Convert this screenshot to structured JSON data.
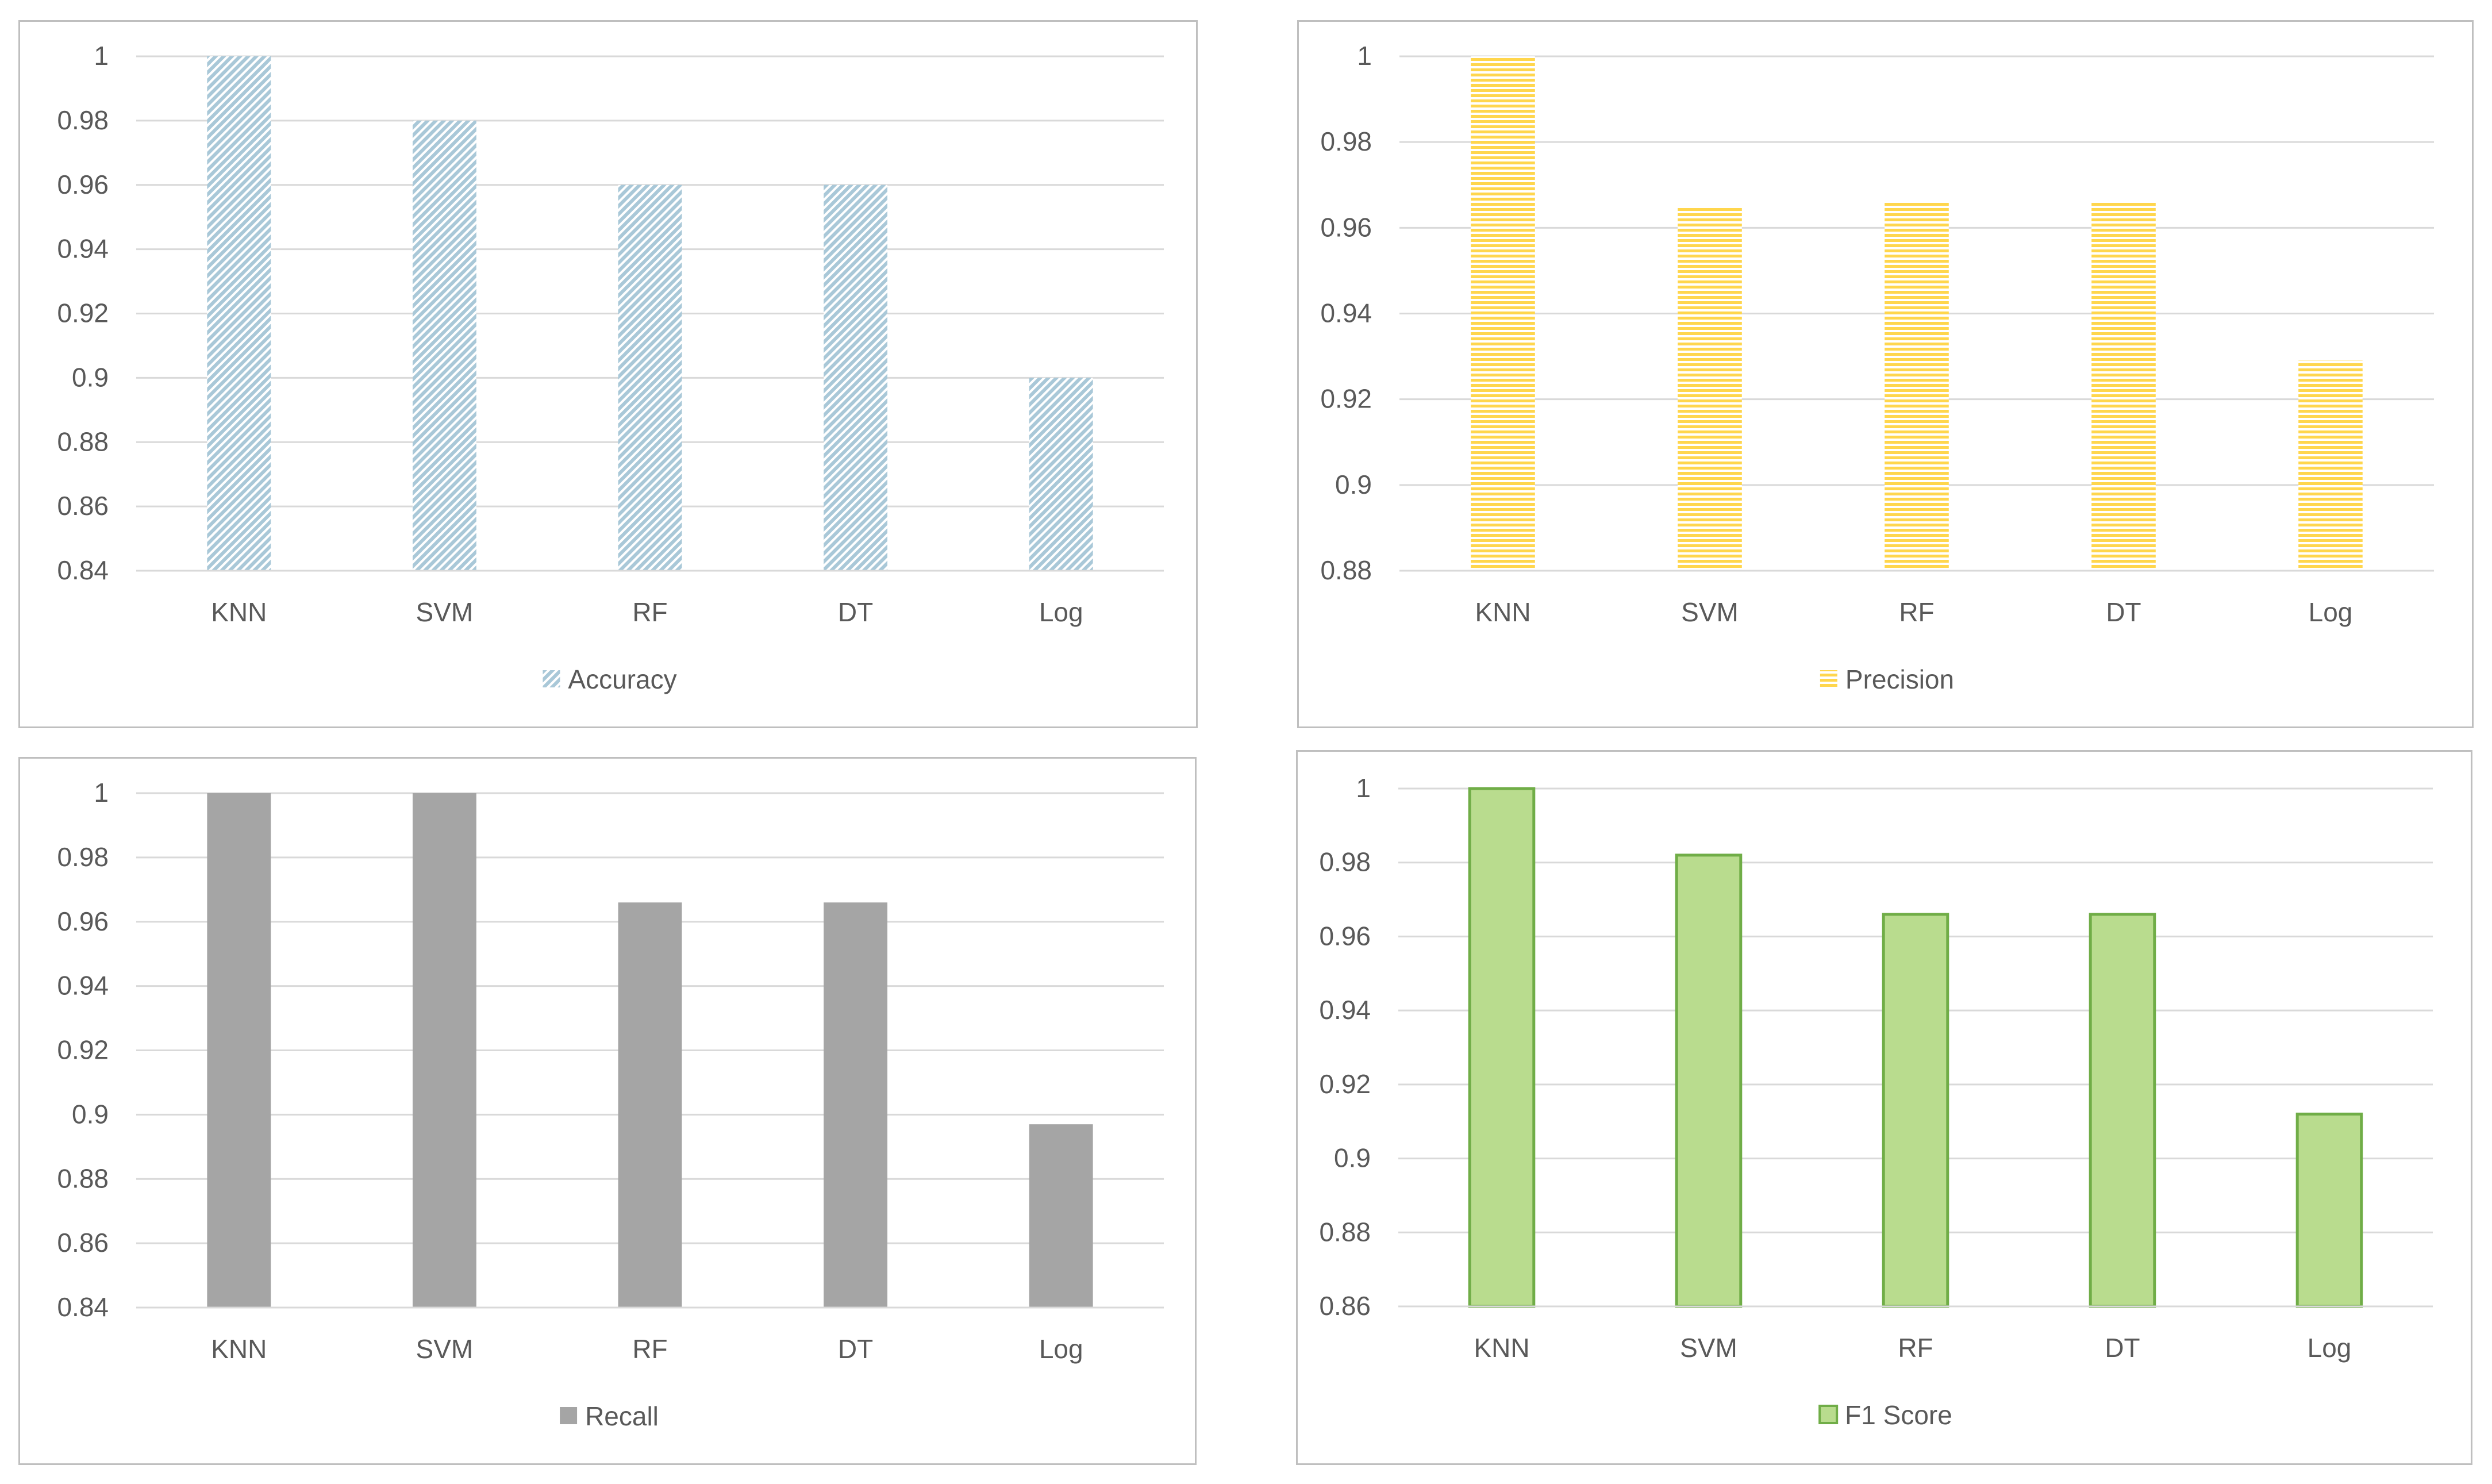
{
  "chart_data": [
    {
      "type": "bar",
      "title": "",
      "categories": [
        "KNN",
        "SVM",
        "RF",
        "DT",
        "Log"
      ],
      "series": [
        {
          "name": "Accuracy",
          "values": [
            1,
            0.98,
            0.96,
            0.96,
            0.9
          ]
        }
      ],
      "yticks": [
        "0.84",
        "0.86",
        "0.88",
        "0.9",
        "0.92",
        "0.94",
        "0.96",
        "0.98",
        "1"
      ],
      "ylim": [
        0.84,
        1
      ],
      "legend": "bottom-center",
      "grid": true,
      "color": "#a9c8d8",
      "pattern": "diagonal-hatch"
    },
    {
      "type": "bar",
      "title": "",
      "categories": [
        "KNN",
        "SVM",
        "RF",
        "DT",
        "Log"
      ],
      "series": [
        {
          "name": "Precision",
          "values": [
            1,
            0.965,
            0.966,
            0.966,
            0.929
          ]
        }
      ],
      "yticks": [
        "0.88",
        "0.9",
        "0.92",
        "0.94",
        "0.96",
        "0.98",
        "1"
      ],
      "ylim": [
        0.88,
        1
      ],
      "legend": "bottom-center",
      "grid": true,
      "color": "#ffd64d",
      "pattern": "horizontal-stripes"
    },
    {
      "type": "bar",
      "title": "",
      "categories": [
        "KNN",
        "SVM",
        "RF",
        "DT",
        "Log"
      ],
      "series": [
        {
          "name": "Recall",
          "values": [
            1,
            1,
            0.966,
            0.966,
            0.897
          ]
        }
      ],
      "yticks": [
        "0.84",
        "0.86",
        "0.88",
        "0.9",
        "0.92",
        "0.94",
        "0.96",
        "0.98",
        "1"
      ],
      "ylim": [
        0.84,
        1
      ],
      "legend": "bottom-center",
      "grid": true,
      "color": "#a5a5a5",
      "pattern": "solid"
    },
    {
      "type": "bar",
      "title": "",
      "categories": [
        "KNN",
        "SVM",
        "RF",
        "DT",
        "Log"
      ],
      "series": [
        {
          "name": "F1 Score",
          "values": [
            1,
            0.982,
            0.966,
            0.966,
            0.912
          ]
        }
      ],
      "yticks": [
        "0.86",
        "0.88",
        "0.9",
        "0.92",
        "0.94",
        "0.96",
        "0.98",
        "1"
      ],
      "ylim": [
        0.86,
        1
      ],
      "legend": "bottom-center",
      "grid": true,
      "color": "#b9dc8e",
      "stroke": "#70ad47",
      "pattern": "solid-outlined"
    }
  ]
}
